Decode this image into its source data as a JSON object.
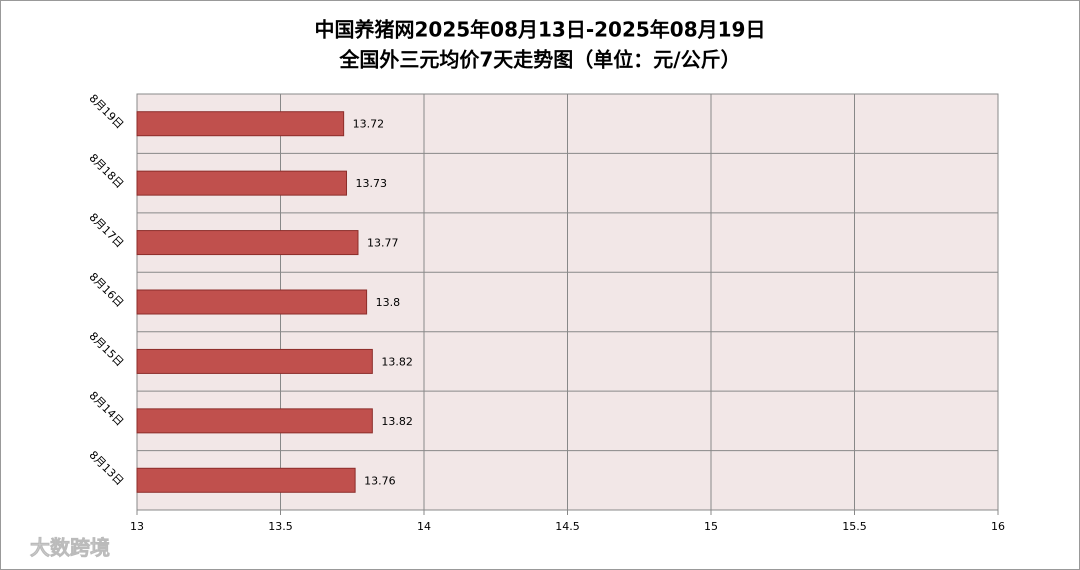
{
  "chart_data": {
    "type": "barh",
    "title": "中国养猪网2025年08月13日-2025年08月19日",
    "subtitle": "全国外三元均价7天走势图（单位：元/公斤）",
    "categories": [
      "8月19日",
      "8月18日",
      "8月17日",
      "8月16日",
      "8月15日",
      "8月14日",
      "8月13日"
    ],
    "values": [
      13.72,
      13.73,
      13.77,
      13.8,
      13.82,
      13.82,
      13.76
    ],
    "color": "#c0504d",
    "xlim": [
      13,
      16
    ],
    "xticks": [
      13,
      13.5,
      14,
      14.5,
      15,
      15.5,
      16
    ],
    "grid": true
  },
  "watermark": "大数跨境"
}
